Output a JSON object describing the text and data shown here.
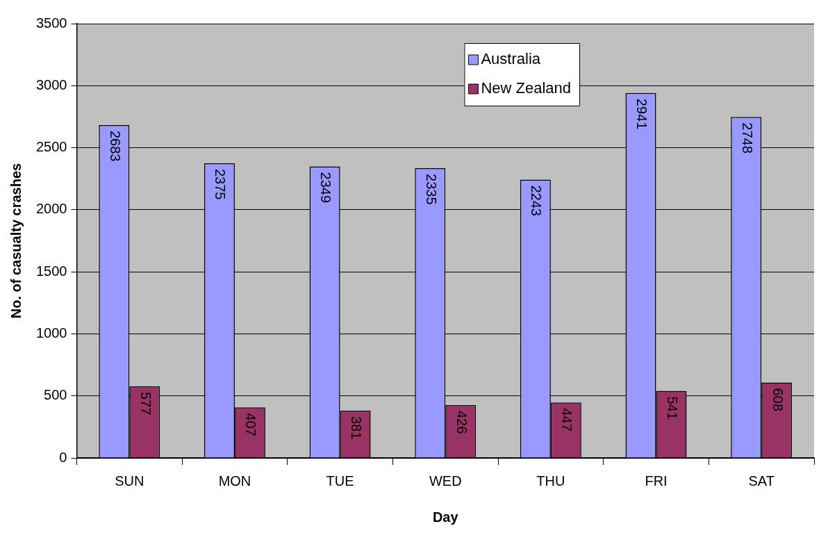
{
  "chart_data": {
    "type": "bar",
    "xlabel": "Day",
    "ylabel": "No. of casualty crashes",
    "categories": [
      "SUN",
      "MON",
      "TUE",
      "WED",
      "THU",
      "FRI",
      "SAT"
    ],
    "series": [
      {
        "name": "Australia",
        "color": "#9999ff",
        "values": [
          2683,
          2375,
          2349,
          2335,
          2243,
          2941,
          2748
        ]
      },
      {
        "name": "New Zealand",
        "color": "#993366",
        "values": [
          577,
          407,
          381,
          426,
          447,
          541,
          608
        ]
      }
    ],
    "ylim": [
      0,
      3500
    ],
    "yticks": [
      0,
      500,
      1000,
      1500,
      2000,
      2500,
      3000,
      3500
    ],
    "grid": "y",
    "legend": "top",
    "data_labels": true
  }
}
